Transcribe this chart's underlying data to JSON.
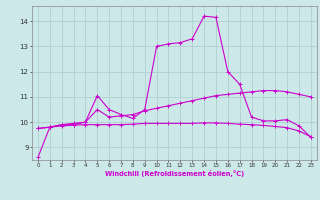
{
  "xlabel": "Windchill (Refroidissement éolien,°C)",
  "background_color": "#cce8e8",
  "grid_color": "#aacccc",
  "line_color": "#cc00cc",
  "xlim": [
    -0.5,
    23.5
  ],
  "ylim": [
    8.5,
    14.6
  ],
  "xticks": [
    0,
    1,
    2,
    3,
    4,
    5,
    6,
    7,
    8,
    9,
    10,
    11,
    12,
    13,
    14,
    15,
    16,
    17,
    18,
    19,
    20,
    21,
    22,
    23
  ],
  "yticks": [
    9,
    10,
    11,
    12,
    13,
    14
  ],
  "line1_y": [
    8.6,
    9.8,
    9.9,
    9.9,
    10.0,
    11.05,
    10.5,
    10.3,
    10.15,
    10.5,
    13.0,
    13.1,
    13.15,
    13.3,
    14.2,
    14.15,
    12.0,
    11.5,
    10.2,
    10.05,
    10.05,
    10.1,
    9.85,
    9.4
  ],
  "line2_y": [
    9.75,
    9.8,
    9.9,
    9.95,
    10.0,
    10.5,
    10.2,
    10.25,
    10.3,
    10.45,
    10.55,
    10.65,
    10.75,
    10.85,
    10.95,
    11.05,
    11.1,
    11.15,
    11.2,
    11.25,
    11.25,
    11.2,
    11.1,
    11.0
  ],
  "line3_y": [
    9.75,
    9.8,
    9.85,
    9.88,
    9.9,
    9.9,
    9.9,
    9.9,
    9.92,
    9.95,
    9.95,
    9.95,
    9.95,
    9.95,
    9.97,
    9.97,
    9.95,
    9.92,
    9.9,
    9.87,
    9.83,
    9.78,
    9.65,
    9.42
  ]
}
